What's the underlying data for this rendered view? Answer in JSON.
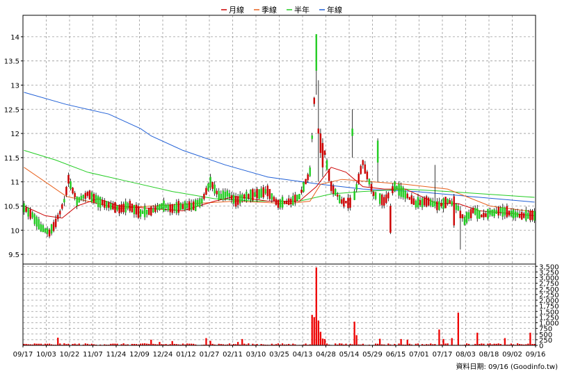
{
  "chart_data": {
    "type": "candlestick",
    "legend": [
      {
        "name": "月線",
        "color": "#cc0000"
      },
      {
        "name": "季線",
        "color": "#e8601c"
      },
      {
        "name": "半年",
        "color": "#22cc22"
      },
      {
        "name": "年線",
        "color": "#1f5fd6"
      }
    ],
    "colors": {
      "up": "#22cc22",
      "down": "#cc0000",
      "volume": "#ee0000",
      "frame": "#000000",
      "grid": "#999999"
    },
    "price_axis": {
      "ylim": [
        9.3,
        14.3
      ],
      "ticks": [
        "14",
        "13.5",
        "13",
        "12.5",
        "12",
        "11.5",
        "11",
        "10.5",
        "10",
        "9.5"
      ]
    },
    "volume_axis": {
      "ylim": [
        0,
        3600
      ],
      "ticks": [
        "3,500",
        "3,250",
        "3,000",
        "2,750",
        "2,500",
        "2,250",
        "2,000",
        "1,750",
        "1,500",
        "1,250",
        "1,000",
        "750",
        "500",
        "250",
        "0"
      ]
    },
    "x_labels": [
      "09/17",
      "10/03",
      "10/22",
      "11/07",
      "11/24",
      "12/09",
      "12/24",
      "01/12",
      "01/27",
      "02/11",
      "03/10",
      "03/25",
      "04/13",
      "04/28",
      "05/14",
      "05/29",
      "06/15",
      "07/01",
      "07/17",
      "08/03",
      "08/18",
      "09/02",
      "09/16"
    ],
    "n_sessions": 242,
    "anchors": [
      [
        0,
        10.45
      ],
      [
        4,
        10.3
      ],
      [
        8,
        10.05
      ],
      [
        12,
        9.95
      ],
      [
        15,
        10.15
      ],
      [
        19,
        10.6
      ],
      [
        21,
        11.05
      ],
      [
        25,
        10.6
      ],
      [
        30,
        10.75
      ],
      [
        35,
        10.6
      ],
      [
        40,
        10.5
      ],
      [
        45,
        10.45
      ],
      [
        50,
        10.5
      ],
      [
        55,
        10.35
      ],
      [
        60,
        10.4
      ],
      [
        65,
        10.5
      ],
      [
        70,
        10.45
      ],
      [
        75,
        10.5
      ],
      [
        80,
        10.5
      ],
      [
        84,
        10.6
      ],
      [
        88,
        11.0
      ],
      [
        92,
        10.7
      ],
      [
        96,
        10.75
      ],
      [
        100,
        10.6
      ],
      [
        105,
        10.7
      ],
      [
        110,
        10.75
      ],
      [
        115,
        10.8
      ],
      [
        120,
        10.55
      ],
      [
        126,
        10.6
      ],
      [
        130,
        10.7
      ],
      [
        135,
        11.2
      ],
      [
        138,
        13.4
      ],
      [
        140,
        12.0
      ],
      [
        142,
        11.6
      ],
      [
        145,
        10.9
      ],
      [
        150,
        10.6
      ],
      [
        155,
        10.55
      ],
      [
        160,
        11.4
      ],
      [
        163,
        11.0
      ],
      [
        165,
        10.75
      ],
      [
        170,
        10.6
      ],
      [
        175,
        10.9
      ],
      [
        180,
        10.75
      ],
      [
        185,
        10.55
      ],
      [
        190,
        10.6
      ],
      [
        195,
        10.5
      ],
      [
        200,
        10.6
      ],
      [
        205,
        10.45
      ],
      [
        208,
        10.2
      ],
      [
        212,
        10.4
      ],
      [
        216,
        10.3
      ],
      [
        220,
        10.35
      ],
      [
        225,
        10.4
      ],
      [
        230,
        10.35
      ],
      [
        235,
        10.3
      ],
      [
        241,
        10.3
      ]
    ],
    "special_candles": [
      {
        "i": 138,
        "o": 13.3,
        "c": 14.05,
        "h": 14.05,
        "l": 12.8
      },
      {
        "i": 139,
        "o": 12.1,
        "c": 12.0,
        "h": 13.1,
        "l": 11.0
      },
      {
        "i": 140,
        "o": 12.0,
        "c": 11.6,
        "h": 12.1,
        "l": 11.5
      },
      {
        "i": 141,
        "o": 11.8,
        "c": 11.3,
        "h": 11.9,
        "l": 11.1
      },
      {
        "i": 155,
        "o": 11.95,
        "c": 12.1,
        "h": 12.5,
        "l": 11.5
      },
      {
        "i": 167,
        "o": 11.4,
        "c": 11.85,
        "h": 11.9,
        "l": 11.0
      },
      {
        "i": 173,
        "o": 10.5,
        "c": 9.95,
        "h": 10.55,
        "l": 9.92
      },
      {
        "i": 194,
        "o": 10.5,
        "c": 10.6,
        "h": 11.35,
        "l": 10.45
      },
      {
        "i": 203,
        "o": 10.7,
        "c": 10.1,
        "h": 10.75,
        "l": 10.05
      },
      {
        "i": 206,
        "o": 10.4,
        "c": 10.25,
        "h": 10.5,
        "l": 9.6
      }
    ],
    "moving_averages": [
      {
        "name": "年線",
        "color": "#1f5fd6",
        "points": [
          [
            0,
            12.85
          ],
          [
            20,
            12.6
          ],
          [
            40,
            12.4
          ],
          [
            55,
            12.1
          ],
          [
            60,
            11.95
          ],
          [
            75,
            11.65
          ],
          [
            95,
            11.35
          ],
          [
            115,
            11.1
          ],
          [
            140,
            10.95
          ],
          [
            160,
            10.85
          ],
          [
            185,
            10.8
          ],
          [
            210,
            10.7
          ],
          [
            241,
            10.58
          ]
        ]
      },
      {
        "name": "半年",
        "color": "#22cc22",
        "points": [
          [
            0,
            11.65
          ],
          [
            15,
            11.45
          ],
          [
            30,
            11.2
          ],
          [
            50,
            11.0
          ],
          [
            70,
            10.8
          ],
          [
            90,
            10.65
          ],
          [
            110,
            10.6
          ],
          [
            130,
            10.6
          ],
          [
            145,
            10.75
          ],
          [
            160,
            10.8
          ],
          [
            180,
            10.85
          ],
          [
            200,
            10.8
          ],
          [
            241,
            10.68
          ]
        ]
      },
      {
        "name": "季線",
        "color": "#e8601c",
        "points": [
          [
            0,
            11.3
          ],
          [
            10,
            11.0
          ],
          [
            20,
            10.7
          ],
          [
            30,
            10.6
          ],
          [
            45,
            10.45
          ],
          [
            60,
            10.5
          ],
          [
            80,
            10.55
          ],
          [
            100,
            10.6
          ],
          [
            125,
            10.55
          ],
          [
            135,
            10.6
          ],
          [
            140,
            10.95
          ],
          [
            150,
            11.05
          ],
          [
            165,
            11.0
          ],
          [
            180,
            10.95
          ],
          [
            200,
            10.85
          ],
          [
            220,
            10.5
          ],
          [
            241,
            10.38
          ]
        ]
      },
      {
        "name": "月線",
        "color": "#cc0000",
        "points": [
          [
            0,
            10.5
          ],
          [
            10,
            10.3
          ],
          [
            18,
            10.25
          ],
          [
            25,
            10.5
          ],
          [
            35,
            10.65
          ],
          [
            45,
            10.5
          ],
          [
            60,
            10.45
          ],
          [
            75,
            10.4
          ],
          [
            90,
            10.6
          ],
          [
            100,
            10.7
          ],
          [
            115,
            10.6
          ],
          [
            130,
            10.6
          ],
          [
            138,
            10.9
          ],
          [
            145,
            11.3
          ],
          [
            152,
            11.2
          ],
          [
            160,
            10.9
          ],
          [
            170,
            10.85
          ],
          [
            180,
            10.85
          ],
          [
            195,
            10.55
          ],
          [
            205,
            10.55
          ],
          [
            215,
            10.4
          ],
          [
            228,
            10.35
          ],
          [
            241,
            10.3
          ]
        ]
      }
    ],
    "volume_spikes": [
      [
        16,
        340
      ],
      [
        60,
        250
      ],
      [
        64,
        150
      ],
      [
        70,
        190
      ],
      [
        86,
        320
      ],
      [
        88,
        200
      ],
      [
        101,
        150
      ],
      [
        103,
        280
      ],
      [
        136,
        1350
      ],
      [
        137,
        1250
      ],
      [
        138,
        3450
      ],
      [
        139,
        1100
      ],
      [
        140,
        600
      ],
      [
        141,
        300
      ],
      [
        142,
        280
      ],
      [
        156,
        1050
      ],
      [
        157,
        450
      ],
      [
        168,
        290
      ],
      [
        178,
        280
      ],
      [
        181,
        250
      ],
      [
        196,
        700
      ],
      [
        202,
        320
      ],
      [
        196,
        700
      ],
      [
        198,
        280
      ],
      [
        205,
        1450
      ],
      [
        214,
        560
      ],
      [
        227,
        320
      ],
      [
        239,
        560
      ]
    ],
    "footer": "資料日期: 09/16  (Goodinfo.tw)"
  }
}
